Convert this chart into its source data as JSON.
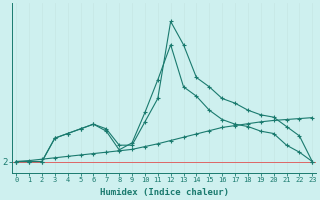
{
  "x_labels": [
    "0",
    "1",
    "2",
    "3",
    "4",
    "5",
    "6",
    "7",
    "8",
    "9",
    "10",
    "11",
    "12",
    "13",
    "14",
    "15",
    "16",
    "17",
    "18",
    "19",
    "20",
    "21",
    "22",
    "23"
  ],
  "x_values": [
    0,
    1,
    2,
    3,
    4,
    5,
    6,
    7,
    8,
    9,
    10,
    11,
    12,
    13,
    14,
    15,
    16,
    17,
    18,
    19,
    20,
    21,
    22,
    23
  ],
  "line1_y": [
    2.2,
    2.2,
    2.2,
    2.7,
    2.8,
    2.9,
    3.0,
    2.9,
    2.55,
    2.55,
    3.05,
    3.55,
    5.2,
    4.7,
    4.0,
    3.8,
    3.55,
    3.45,
    3.3,
    3.2,
    3.15,
    2.95,
    2.75,
    2.2
  ],
  "line2_y": [
    2.2,
    2.2,
    2.2,
    2.7,
    2.8,
    2.9,
    3.0,
    2.85,
    2.45,
    2.6,
    3.25,
    3.95,
    4.7,
    3.8,
    3.6,
    3.3,
    3.1,
    3.0,
    2.95,
    2.85,
    2.8,
    2.55,
    2.4,
    2.2
  ],
  "line3_y": [
    2.2,
    2.22,
    2.25,
    2.28,
    2.31,
    2.34,
    2.37,
    2.4,
    2.43,
    2.46,
    2.52,
    2.58,
    2.65,
    2.72,
    2.79,
    2.86,
    2.93,
    2.97,
    3.01,
    3.05,
    3.08,
    3.1,
    3.12,
    3.14
  ],
  "background_color": "#cef0ef",
  "line_color": "#1a7a6e",
  "vgrid_color": "#c8e8e6",
  "hline_color": "#dd6666",
  "hline_y": 2.2,
  "ylabel_val": 2.2,
  "ylabel_text": "2",
  "xlabel": "Humidex (Indice chaleur)",
  "ylim_min": 1.95,
  "ylim_max": 5.6,
  "xlim_min": -0.3,
  "xlim_max": 23.3,
  "linewidth": 0.8,
  "markersize": 3.5,
  "tick_fontsize": 5.0,
  "xlabel_fontsize": 6.5
}
